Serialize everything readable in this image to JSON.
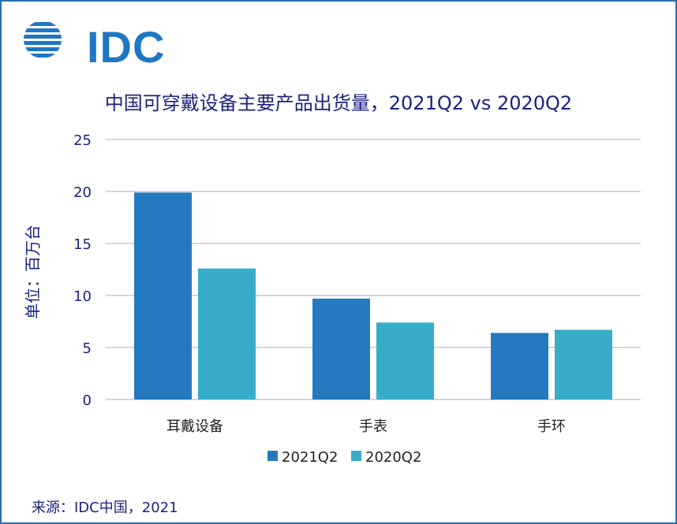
{
  "logo": {
    "text": "IDC",
    "icon": "idc-globe-icon"
  },
  "source": "来源：IDC中国，2021",
  "colors": {
    "series1": "#2479bf",
    "series2": "#38adc9",
    "text": "#1a237e",
    "grid": "#c9c6e4",
    "frame": "#2a6fb0"
  },
  "chart_data": {
    "type": "bar",
    "title": "中国可穿戴设备主要产品出货量，2021Q2 vs 2020Q2",
    "ylabel": "单位：百万台",
    "xlabel": "",
    "categories": [
      "耳戴设备",
      "手表",
      "手环"
    ],
    "series": [
      {
        "name": "2021Q2",
        "values": [
          19.9,
          9.7,
          6.4
        ]
      },
      {
        "name": "2020Q2",
        "values": [
          12.6,
          7.4,
          6.7
        ]
      }
    ],
    "ylim": [
      0,
      25
    ],
    "yticks": [
      "0",
      "5",
      "10",
      "15",
      "20",
      "25"
    ],
    "grid": true,
    "legend": "bottom-center"
  }
}
